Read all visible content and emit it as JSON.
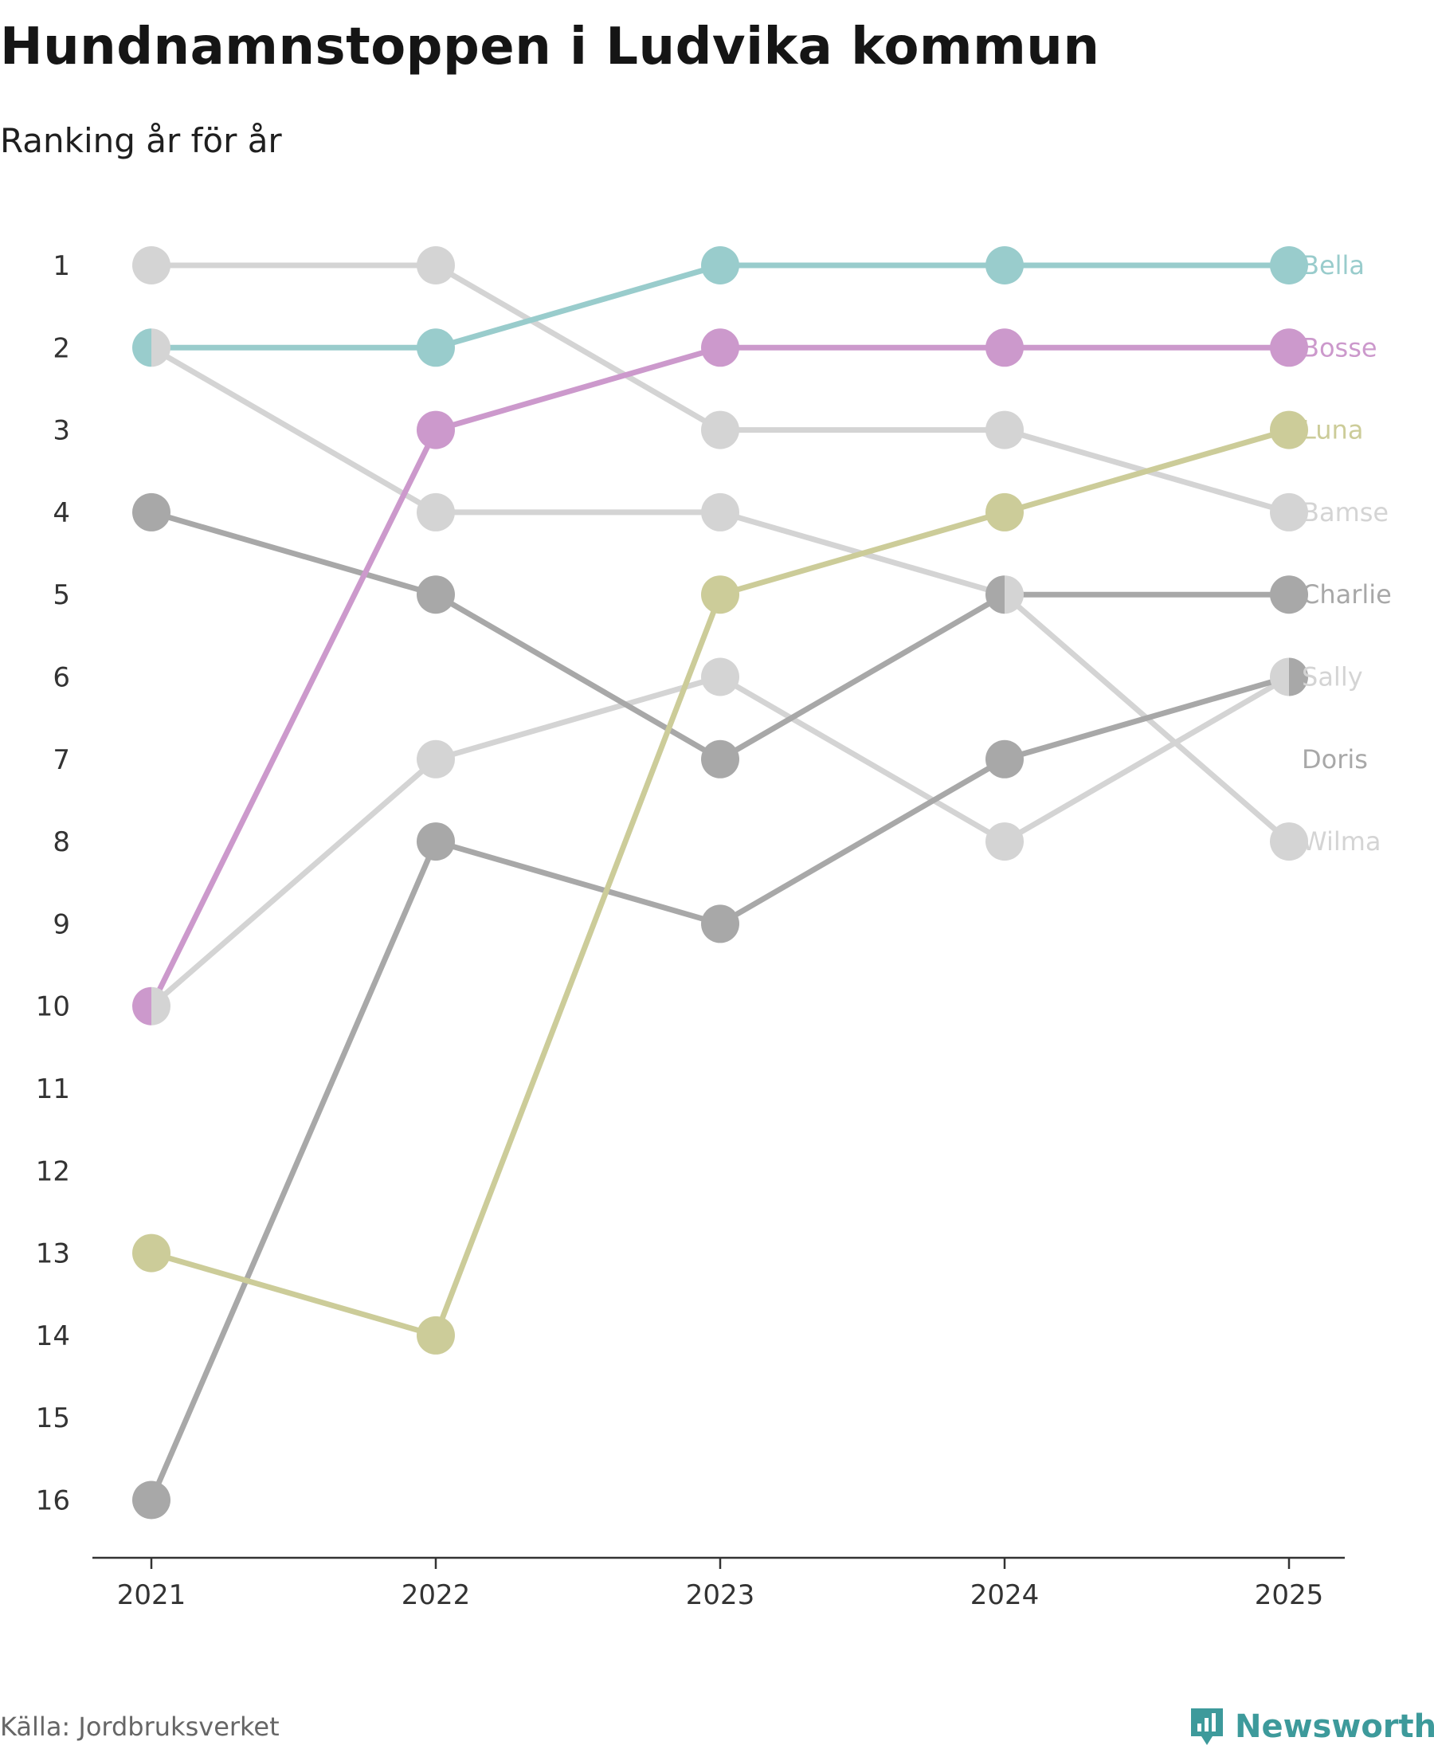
{
  "header": {
    "title": "Hundnamnstoppen i Ludvika kommun",
    "subtitle": "Ranking år för år"
  },
  "footer": {
    "source": "Källa: Jordbruksverket",
    "brand": "Newsworthy",
    "brand_icon": "bar-chart-speech-bubble-icon",
    "brand_color": "#3d9a9b"
  },
  "chart_data": {
    "type": "line",
    "subtype": "bump",
    "title": "Hundnamnstoppen i Ludvika kommun",
    "subtitle": "Ranking år för år",
    "xlabel": "",
    "ylabel": "",
    "categories": [
      "2021",
      "2022",
      "2023",
      "2024",
      "2025"
    ],
    "y_ticks": [
      "1",
      "2",
      "3",
      "4",
      "5",
      "6",
      "7",
      "8",
      "9",
      "10",
      "11",
      "12",
      "13",
      "14",
      "15",
      "16"
    ],
    "ylim": [
      1,
      16
    ],
    "y_inverted": true,
    "grid": false,
    "series": [
      {
        "name": "Bamse",
        "color": "#d4d4d4",
        "values": [
          1,
          1,
          3,
          3,
          4
        ]
      },
      {
        "name": "Wilma",
        "color": "#d4d4d4",
        "values": [
          2,
          4,
          4,
          5,
          8
        ]
      },
      {
        "name": "Sally",
        "color": "#d4d4d4",
        "values": [
          10,
          7,
          6,
          8,
          6
        ]
      },
      {
        "name": "Charlie",
        "color": "#a8a8a8",
        "values": [
          4,
          5,
          7,
          5,
          5
        ]
      },
      {
        "name": "Doris",
        "color": "#a8a8a8",
        "values": [
          16,
          8,
          9,
          7,
          6
        ]
      },
      {
        "name": "Luna",
        "color": "#cccc99",
        "values": [
          13,
          14,
          5,
          4,
          3
        ]
      },
      {
        "name": "Bosse",
        "color": "#cc99cc",
        "values": [
          10,
          3,
          2,
          2,
          2
        ]
      },
      {
        "name": "Bella",
        "color": "#99cccc",
        "values": [
          2,
          2,
          1,
          1,
          1
        ]
      }
    ],
    "end_labels": [
      {
        "name": "Bella",
        "color": "#99cccc",
        "rank": 1
      },
      {
        "name": "Bosse",
        "color": "#cc99cc",
        "rank": 2
      },
      {
        "name": "Luna",
        "color": "#cccc99",
        "rank": 3
      },
      {
        "name": "Bamse",
        "color": "#d4d4d4",
        "rank": 4
      },
      {
        "name": "Charlie",
        "color": "#a8a8a8",
        "rank": 5
      },
      {
        "name": "Sally",
        "color": "#d4d4d4",
        "rank": 6
      },
      {
        "name": "Doris",
        "color": "#a8a8a8",
        "rank": 7
      },
      {
        "name": "Wilma",
        "color": "#d4d4d4",
        "rank": 8
      }
    ],
    "split_markers": [
      {
        "year": "2021",
        "rank": 2,
        "left": "Bella",
        "right": "Wilma"
      },
      {
        "year": "2021",
        "rank": 10,
        "left": "Bosse",
        "right": "Sally"
      },
      {
        "year": "2024",
        "rank": 5,
        "left": "Charlie",
        "right": "Wilma"
      },
      {
        "year": "2025",
        "rank": 6,
        "left": "Sally",
        "right": "Doris"
      }
    ]
  }
}
